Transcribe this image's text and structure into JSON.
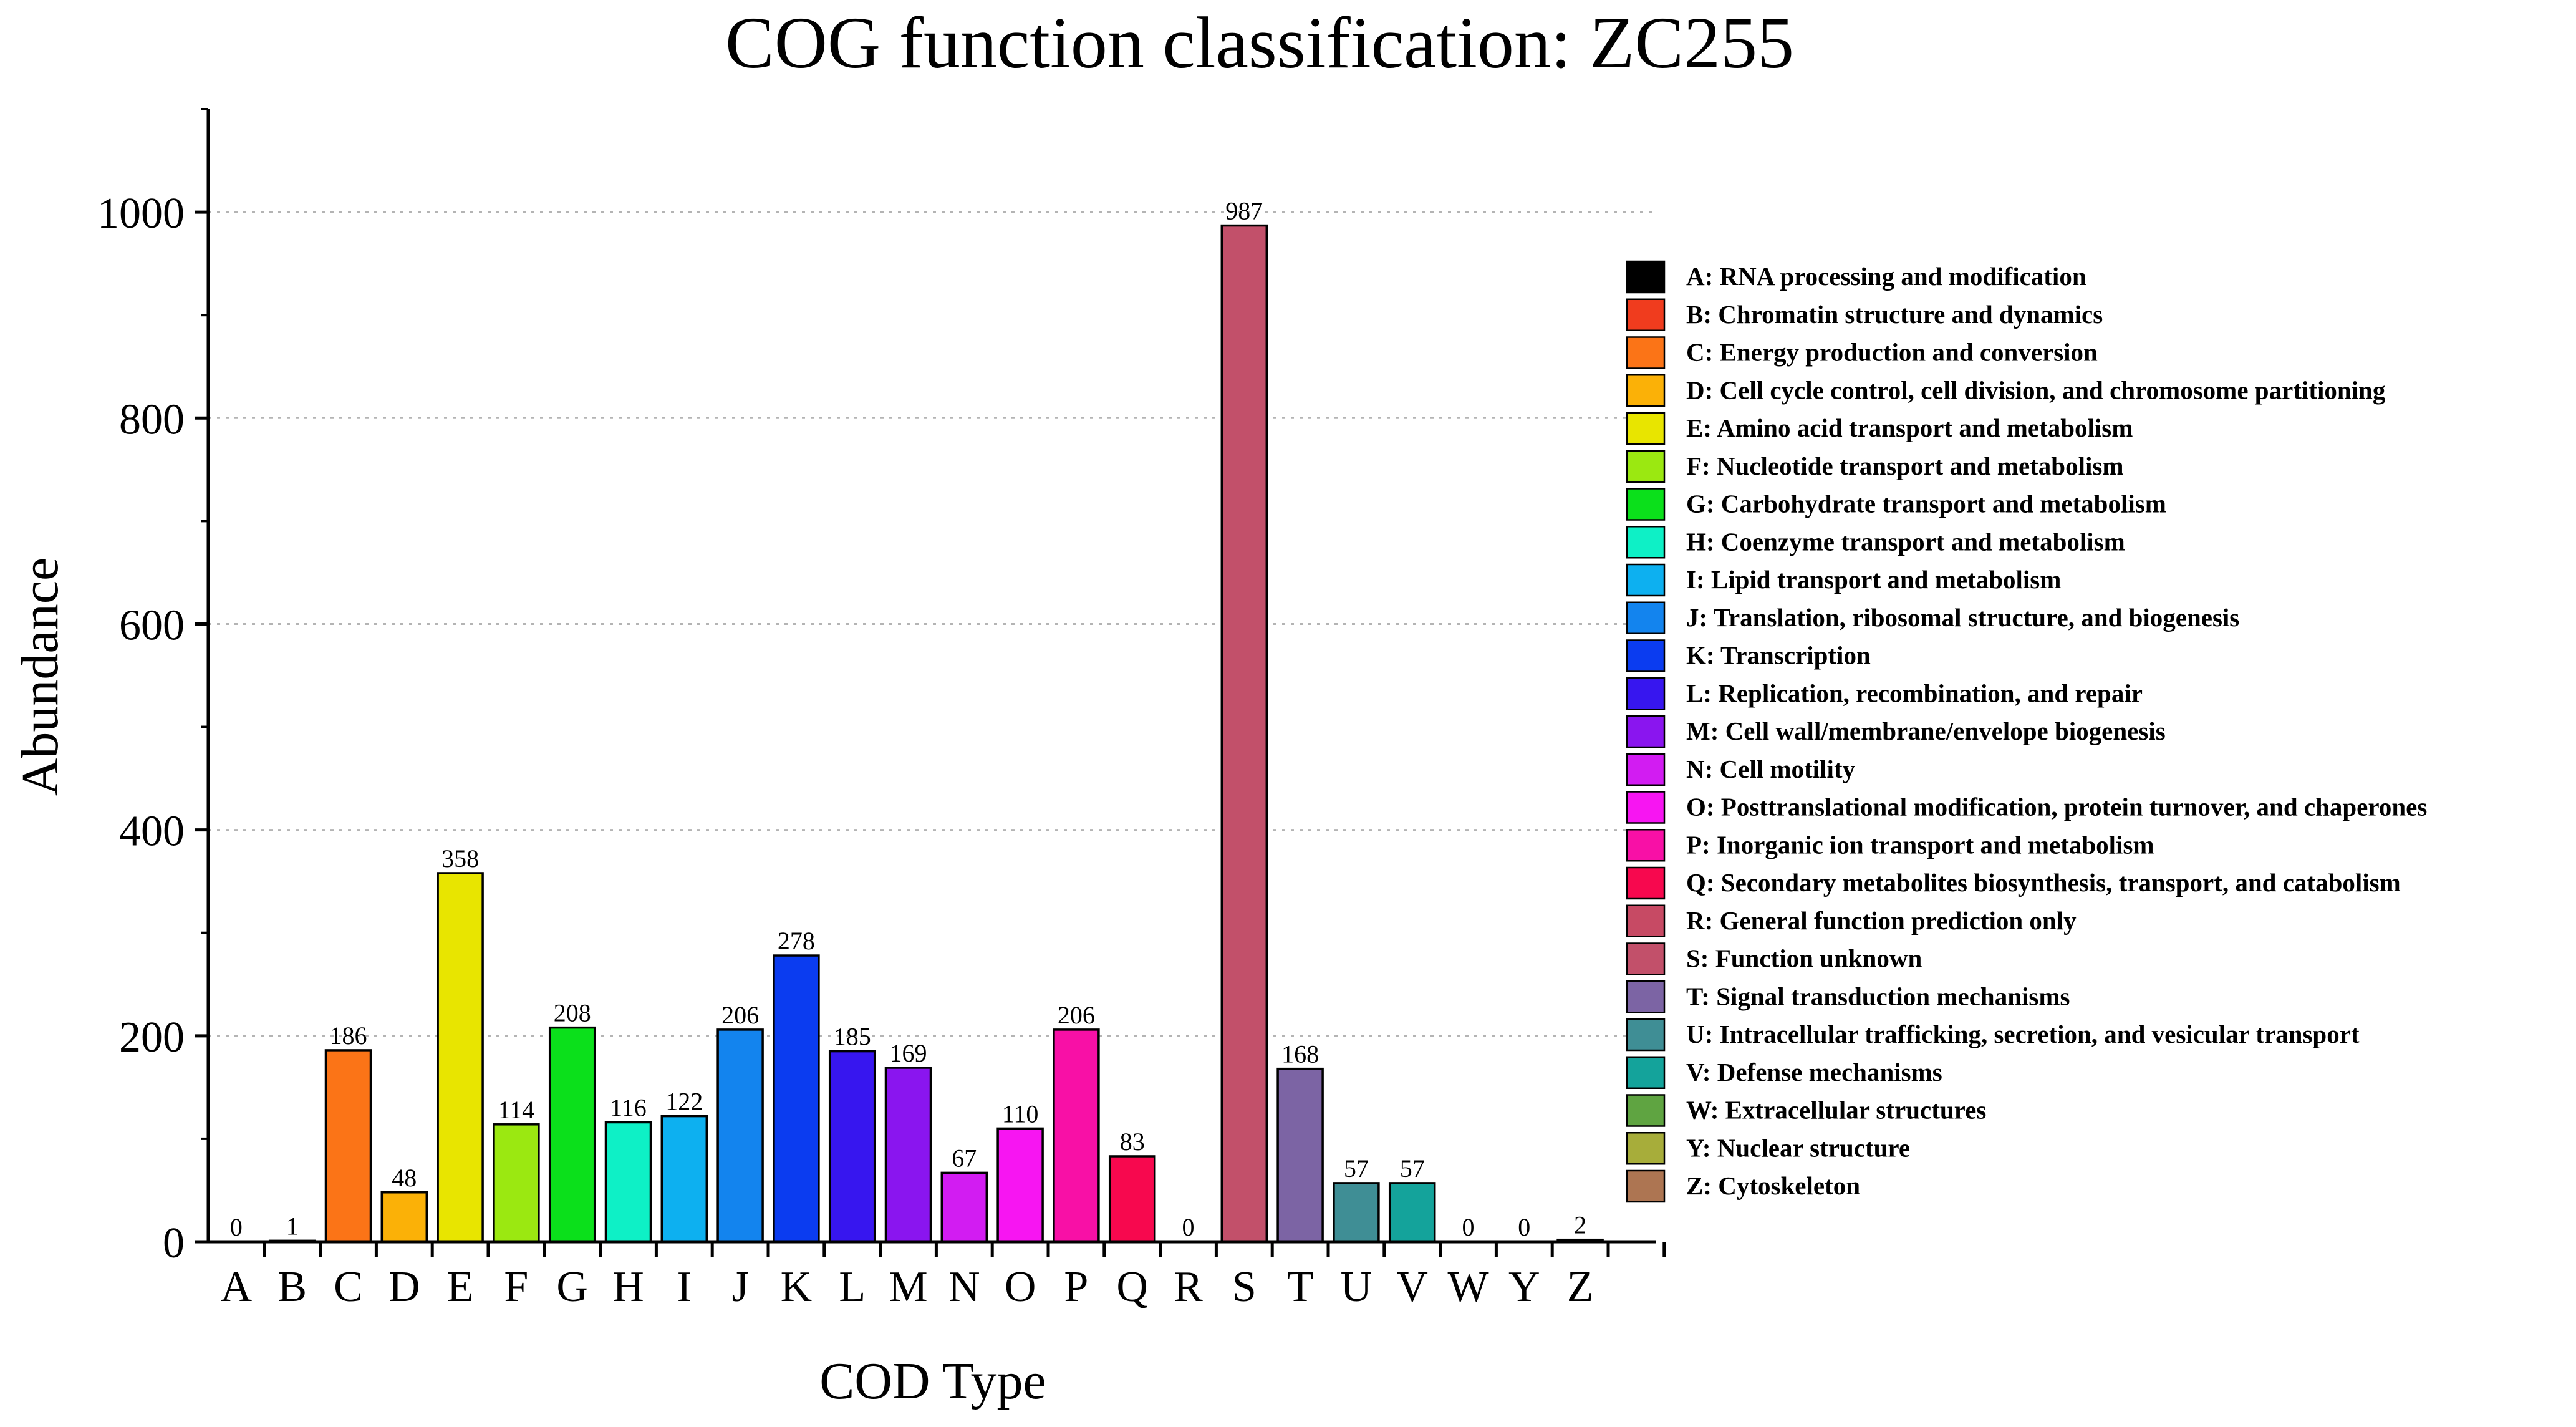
{
  "chart_data": {
    "type": "bar",
    "title": "COG function classification: ZC255",
    "xlabel": "COD Type",
    "ylabel": "Abundance",
    "ylim": [
      0,
      1100
    ],
    "yticks": [
      0,
      200,
      400,
      600,
      800,
      1000
    ],
    "grid": true,
    "legend_position": "right",
    "categories": [
      "A",
      "B",
      "C",
      "D",
      "E",
      "F",
      "G",
      "H",
      "I",
      "J",
      "K",
      "L",
      "M",
      "N",
      "O",
      "P",
      "Q",
      "R",
      "S",
      "T",
      "U",
      "V",
      "W",
      "Y",
      "Z"
    ],
    "values": [
      0,
      1,
      186,
      48,
      358,
      114,
      208,
      116,
      122,
      206,
      278,
      185,
      169,
      67,
      110,
      206,
      83,
      0,
      987,
      168,
      57,
      57,
      0,
      0,
      2
    ],
    "colors": [
      "#000000",
      "#f03c1e",
      "#fb7417",
      "#fbb107",
      "#e8e500",
      "#9be811",
      "#0be01b",
      "#0ef0c6",
      "#0db0f0",
      "#1384ee",
      "#0b3cf0",
      "#3716ef",
      "#8a15ef",
      "#d21cf2",
      "#f715f2",
      "#f810a6",
      "#f7084e",
      "#c74a64",
      "#c2506a",
      "#7c64a4",
      "#3f8e95",
      "#14a39b",
      "#5fa441",
      "#a7ad3a",
      "#ad7552"
    ],
    "legend": [
      "A: RNA processing and modification",
      "B: Chromatin structure and dynamics",
      "C: Energy production and conversion",
      "D: Cell cycle control, cell division, and chromosome partitioning",
      "E: Amino acid transport and metabolism",
      "F: Nucleotide transport and metabolism",
      "G: Carbohydrate transport and metabolism",
      "H: Coenzyme transport and metabolism",
      "I: Lipid transport and metabolism",
      "J: Translation, ribosomal structure, and biogenesis",
      "K: Transcription",
      "L: Replication, recombination, and repair",
      "M: Cell wall/membrane/envelope biogenesis",
      "N: Cell motility",
      "O: Posttranslational modification, protein turnover, and chaperones",
      "P: Inorganic ion transport and metabolism",
      "Q: Secondary metabolites biosynthesis, transport, and catabolism",
      "R: General function prediction only",
      "S: Function unknown",
      "T: Signal transduction mechanisms",
      "U: Intracellular trafficking, secretion, and vesicular transport",
      "V: Defense mechanisms",
      "W: Extracellular structures",
      "Y: Nuclear structure",
      "Z: Cytoskeleton"
    ]
  }
}
